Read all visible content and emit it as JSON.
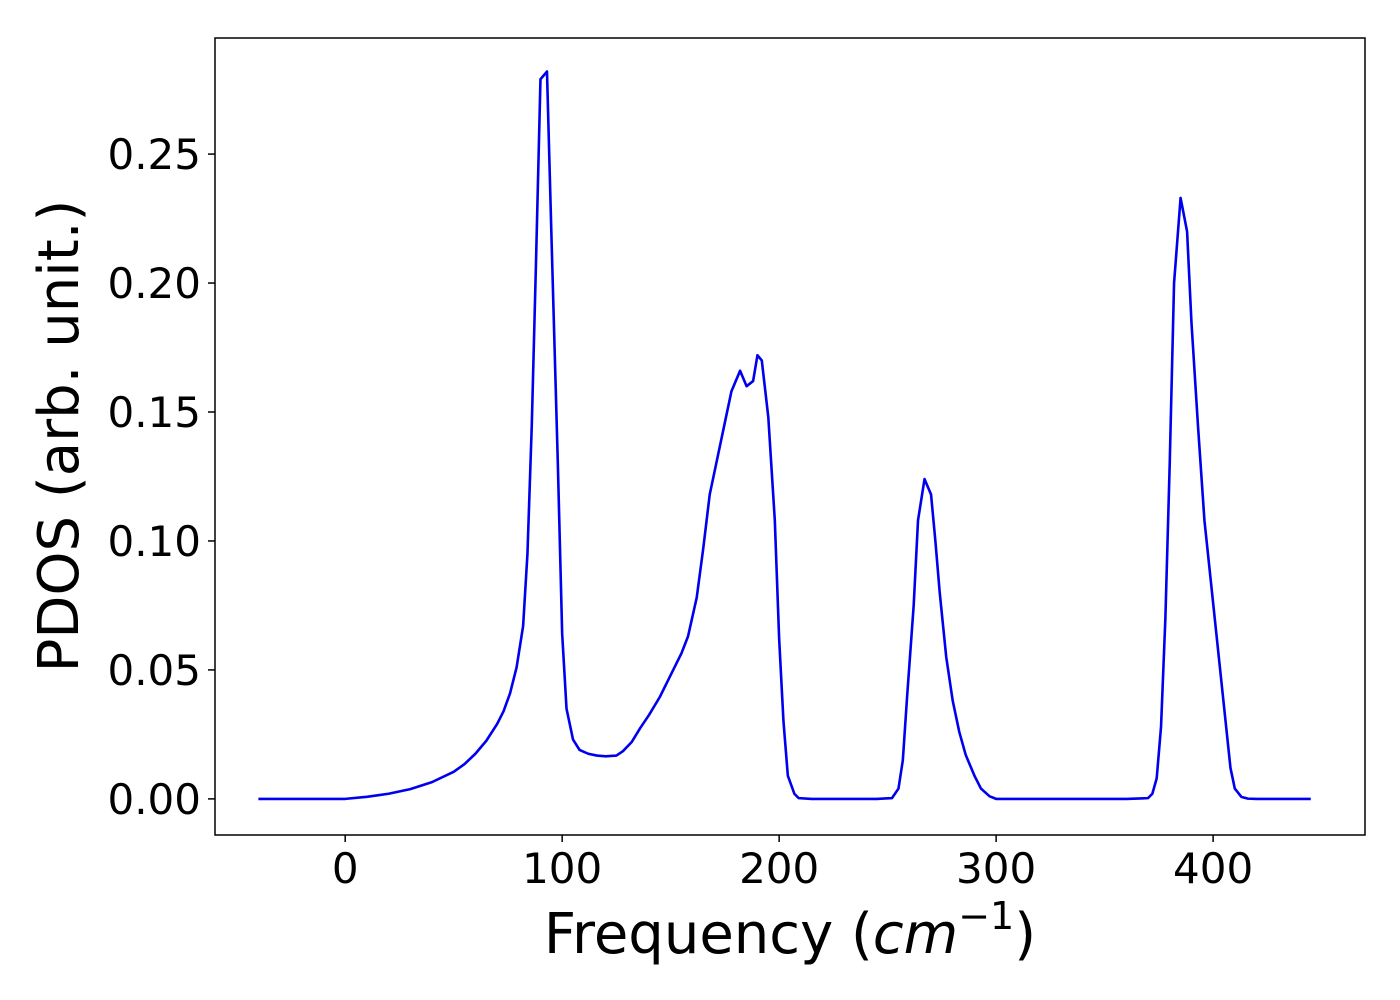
{
  "chart_data": {
    "type": "line",
    "title": "",
    "xlabel": {
      "prefix": "Frequency (",
      "var": "cm",
      "sup": "−1",
      "suffix": ")"
    },
    "ylabel": "PDOS (arb. unit.)",
    "xlim": [
      -60,
      470
    ],
    "ylim": [
      -0.014,
      0.295
    ],
    "xticks": [
      0,
      100,
      200,
      300,
      400
    ],
    "xtick_labels": [
      "0",
      "100",
      "200",
      "300",
      "400"
    ],
    "yticks": [
      0.0,
      0.05,
      0.1,
      0.15,
      0.2,
      0.25
    ],
    "ytick_labels": [
      "0.00",
      "0.05",
      "0.10",
      "0.15",
      "0.20",
      "0.25"
    ],
    "grid": false,
    "legend": "none",
    "series": [
      {
        "color": "#0000ee",
        "x": [
          -40,
          -20,
          0,
          10,
          20,
          30,
          40,
          50,
          55,
          60,
          65,
          70,
          73,
          76,
          79,
          82,
          84,
          86,
          88,
          90,
          93,
          95,
          98,
          100,
          102,
          105,
          108,
          112,
          116,
          120,
          125,
          128,
          132,
          136,
          140,
          145,
          150,
          155,
          158,
          162,
          165,
          168,
          172,
          175,
          178,
          182,
          185,
          188,
          190,
          192,
          195,
          198,
          200,
          202,
          204,
          207,
          209,
          215,
          230,
          245,
          252,
          255,
          257,
          259,
          262,
          264,
          267,
          270,
          272,
          274,
          277,
          280,
          283,
          286,
          290,
          293,
          297,
          300,
          320,
          340,
          360,
          370,
          372,
          374,
          376,
          378,
          380,
          382,
          385,
          388,
          390,
          393,
          396,
          400,
          403,
          406,
          408,
          410,
          413,
          416,
          420,
          430,
          445
        ],
        "y": [
          0.0,
          0.0,
          0.0,
          0.0008,
          0.002,
          0.0038,
          0.0065,
          0.0105,
          0.0135,
          0.0175,
          0.0225,
          0.029,
          0.034,
          0.041,
          0.051,
          0.067,
          0.095,
          0.145,
          0.21,
          0.279,
          0.282,
          0.22,
          0.13,
          0.064,
          0.035,
          0.023,
          0.019,
          0.0175,
          0.0168,
          0.0165,
          0.0168,
          0.0185,
          0.022,
          0.0275,
          0.0325,
          0.0395,
          0.048,
          0.0565,
          0.063,
          0.078,
          0.097,
          0.118,
          0.134,
          0.146,
          0.158,
          0.166,
          0.16,
          0.162,
          0.172,
          0.17,
          0.148,
          0.108,
          0.062,
          0.03,
          0.009,
          0.002,
          0.0003,
          0.0,
          0.0,
          0.0,
          0.0003,
          0.004,
          0.015,
          0.04,
          0.075,
          0.108,
          0.124,
          0.118,
          0.1,
          0.08,
          0.055,
          0.038,
          0.026,
          0.017,
          0.009,
          0.004,
          0.001,
          0.0,
          0.0,
          0.0,
          0.0,
          0.0003,
          0.002,
          0.008,
          0.028,
          0.07,
          0.13,
          0.2,
          0.233,
          0.22,
          0.185,
          0.145,
          0.108,
          0.076,
          0.052,
          0.028,
          0.012,
          0.004,
          0.0008,
          0.0001,
          0.0,
          0.0,
          0.0
        ]
      }
    ]
  }
}
